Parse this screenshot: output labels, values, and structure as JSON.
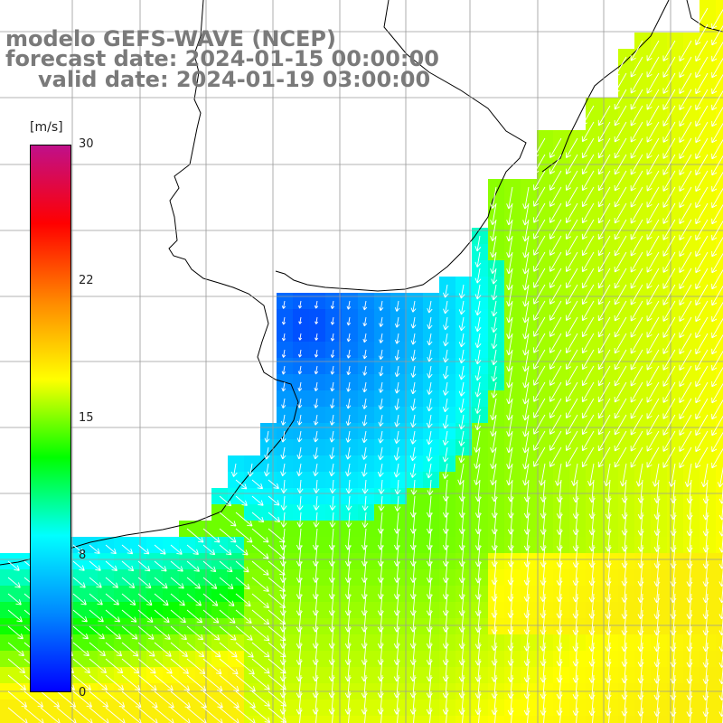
{
  "title": {
    "model": "modelo GEFS-WAVE (NCEP)",
    "forecast": "forecast date: 2024-01-15 00:00:00",
    "valid": "valid date: 2024-01-19 03:00:00"
  },
  "colorbar": {
    "unit": "[m/s]",
    "min": 0,
    "max": 30,
    "ticks": [
      "30",
      "22",
      "15",
      "8",
      "0"
    ],
    "tick_values": [
      30,
      22,
      15,
      8,
      0
    ],
    "colors": [
      "#0000ff",
      "#0088ff",
      "#00ffff",
      "#00ff00",
      "#ffff00",
      "#ff8800",
      "#ff0000",
      "#c0108a"
    ]
  },
  "map_colors": {
    "land": "#ffffff",
    "coast": "#000000",
    "grid": "#9a9a9a",
    "arrow": "#ffffff"
  }
}
